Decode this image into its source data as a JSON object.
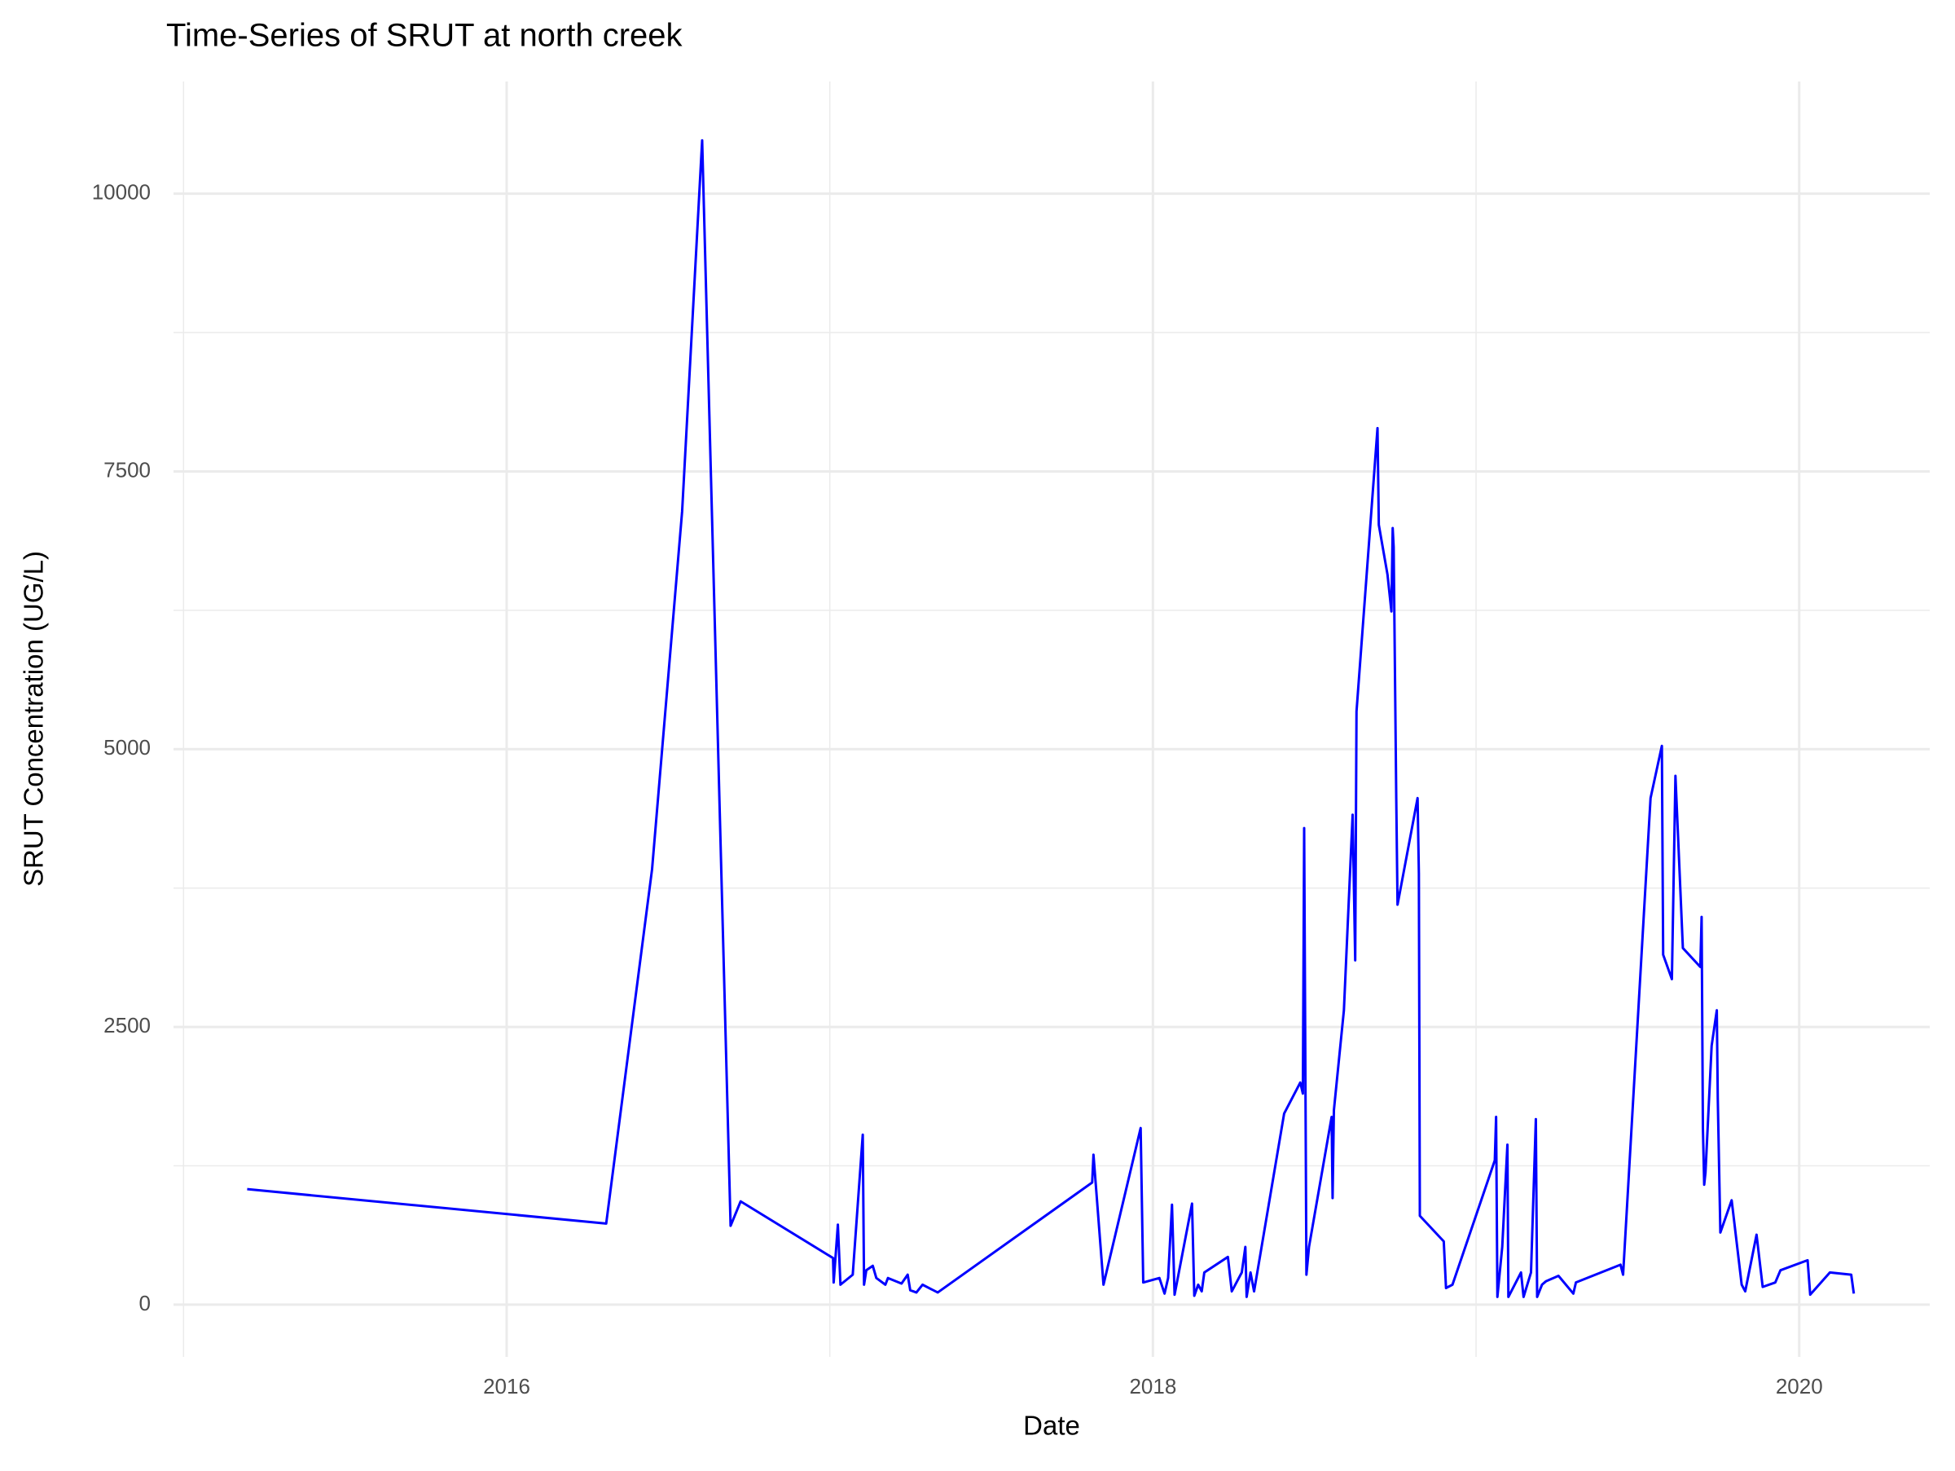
{
  "chart_data": {
    "type": "line",
    "title": "Time-Series of SRUT at north creek",
    "x_label": "Date",
    "y_label": "SRUT Concentration (UG/L)",
    "xlim": [
      2014.969,
      2020.404
    ],
    "xticks": [
      2016,
      2018,
      2020
    ],
    "ylim": [
      -470,
      11010
    ],
    "yticks": [
      0,
      2500,
      5000,
      7500,
      10000
    ],
    "grid": true,
    "series": [
      {
        "name": "SRUT",
        "color": "#0000ff",
        "x": [
          2015.197,
          2016.308,
          2016.45,
          2016.543,
          2016.605,
          2016.693,
          2016.724,
          2017.01,
          2017.012,
          2017.025,
          2017.033,
          2017.071,
          2017.102,
          2017.106,
          2017.113,
          2017.133,
          2017.144,
          2017.172,
          2017.18,
          2017.222,
          2017.241,
          2017.249,
          2017.268,
          2017.287,
          2017.334,
          2017.812,
          2017.816,
          2017.824,
          2017.847,
          2017.962,
          2017.97,
          2018.02,
          2018.036,
          2018.047,
          2018.059,
          2018.067,
          2018.121,
          2018.128,
          2018.14,
          2018.151,
          2018.159,
          2018.232,
          2018.244,
          2018.275,
          2018.286,
          2018.29,
          2018.302,
          2018.313,
          2018.406,
          2018.456,
          2018.464,
          2018.468,
          2018.475,
          2018.483,
          2018.553,
          2018.556,
          2018.56,
          2018.591,
          2018.618,
          2018.626,
          2018.63,
          2018.695,
          2018.699,
          2018.726,
          2018.738,
          2018.742,
          2018.745,
          2018.753,
          2018.757,
          2018.819,
          2018.823,
          2018.826,
          2018.9,
          2018.907,
          2018.927,
          2019.058,
          2019.062,
          2019.066,
          2019.081,
          2019.097,
          2019.1,
          2019.139,
          2019.147,
          2019.17,
          2019.185,
          2019.189,
          2019.204,
          2019.216,
          2019.255,
          2019.301,
          2019.309,
          2019.447,
          2019.455,
          2019.54,
          2019.575,
          2019.579,
          2019.606,
          2019.617,
          2019.64,
          2019.694,
          2019.698,
          2019.702,
          2019.706,
          2019.71,
          2019.729,
          2019.745,
          2019.748,
          2019.756,
          2019.791,
          2019.822,
          2019.833,
          2019.868,
          2019.887,
          2019.926,
          2019.942,
          2020.026,
          2020.034,
          2020.095,
          2020.161,
          2020.169
        ],
        "values": [
          1040,
          730,
          3920,
          7140,
          10480,
          710,
          930,
          420,
          200,
          720,
          180,
          270,
          1530,
          180,
          310,
          350,
          240,
          180,
          240,
          190,
          270,
          130,
          110,
          180,
          110,
          1100,
          1350,
          1050,
          180,
          1590,
          200,
          240,
          100,
          240,
          900,
          90,
          910,
          80,
          180,
          120,
          290,
          430,
          120,
          290,
          520,
          70,
          290,
          120,
          1720,
          2000,
          1900,
          4290,
          270,
          520,
          1690,
          960,
          1750,
          2650,
          4410,
          3100,
          5340,
          7890,
          7020,
          6570,
          6240,
          6990,
          6820,
          4560,
          3600,
          4560,
          3880,
          800,
          570,
          150,
          180,
          1300,
          1690,
          70,
          520,
          1440,
          70,
          290,
          70,
          290,
          1670,
          70,
          180,
          210,
          260,
          100,
          200,
          360,
          270,
          4560,
          5030,
          3150,
          2930,
          4760,
          3210,
          3040,
          3490,
          1590,
          1080,
          1190,
          2330,
          2650,
          1860,
          650,
          940,
          180,
          120,
          630,
          160,
          200,
          310,
          400,
          90,
          290,
          270,
          100
        ]
      }
    ]
  }
}
